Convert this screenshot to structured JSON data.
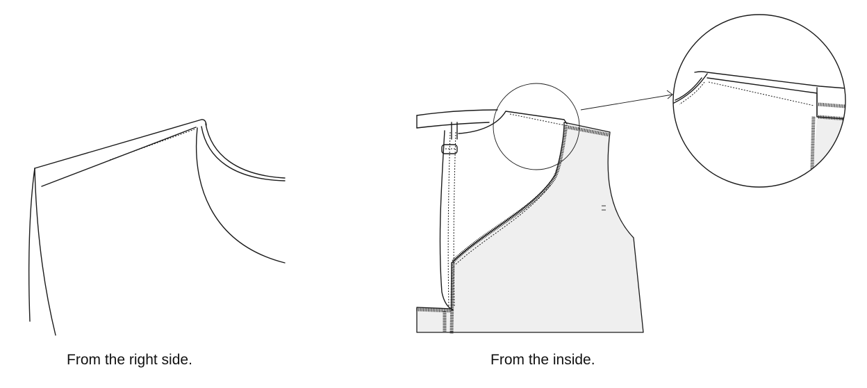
{
  "captions": {
    "right_side": "From the right side.",
    "inside": "From the inside."
  },
  "colors": {
    "line": "#1a1a1a",
    "lining_fill": "#efefef",
    "background": "#ffffff"
  }
}
